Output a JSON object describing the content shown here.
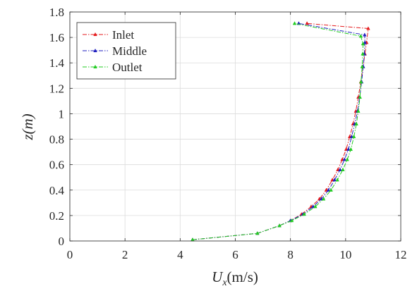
{
  "chart_data": {
    "type": "line",
    "xlabel": "U_x(m/s)",
    "xlabel_var": "U",
    "xlabel_sub": "x",
    "xlabel_unit": "(m/s)",
    "ylabel": "z(m)",
    "ylabel_var": "z",
    "ylabel_unit": "(m)",
    "xlim": [
      0,
      12
    ],
    "ylim": [
      0,
      1.8
    ],
    "xticks": [
      "0",
      "2",
      "4",
      "6",
      "8",
      "10",
      "12"
    ],
    "yticks": [
      "0",
      "0.2",
      "0.4",
      "0.6",
      "0.8",
      "1",
      "1.2",
      "1.4",
      "1.6",
      "1.8"
    ],
    "xtick_values": [
      0,
      2,
      4,
      6,
      8,
      10,
      12
    ],
    "ytick_values": [
      0,
      0.2,
      0.4,
      0.6,
      0.8,
      1.0,
      1.2,
      1.4,
      1.6,
      1.8
    ],
    "grid": true,
    "legend": "top-left",
    "series": [
      {
        "name": "Inlet",
        "color": "#e41a1c",
        "line_style": "dash-dot",
        "marker": "triangle",
        "points": [
          [
            4.45,
            0.01
          ],
          [
            6.8,
            0.06
          ],
          [
            7.6,
            0.12
          ],
          [
            8.0,
            0.16
          ],
          [
            8.4,
            0.21
          ],
          [
            8.75,
            0.27
          ],
          [
            9.05,
            0.33
          ],
          [
            9.3,
            0.4
          ],
          [
            9.52,
            0.48
          ],
          [
            9.72,
            0.56
          ],
          [
            9.88,
            0.64
          ],
          [
            10.02,
            0.72
          ],
          [
            10.15,
            0.82
          ],
          [
            10.27,
            0.92
          ],
          [
            10.37,
            1.02
          ],
          [
            10.46,
            1.13
          ],
          [
            10.55,
            1.25
          ],
          [
            10.63,
            1.37
          ],
          [
            10.7,
            1.47
          ],
          [
            10.76,
            1.56
          ],
          [
            10.82,
            1.67
          ],
          [
            8.6,
            1.71
          ]
        ]
      },
      {
        "name": "Middle",
        "color": "#1f1fbf",
        "line_style": "dash-dot",
        "marker": "triangle",
        "points": [
          [
            4.45,
            0.01
          ],
          [
            6.8,
            0.06
          ],
          [
            7.6,
            0.12
          ],
          [
            8.0,
            0.16
          ],
          [
            8.45,
            0.21
          ],
          [
            8.82,
            0.27
          ],
          [
            9.12,
            0.33
          ],
          [
            9.38,
            0.4
          ],
          [
            9.6,
            0.48
          ],
          [
            9.8,
            0.56
          ],
          [
            9.96,
            0.64
          ],
          [
            10.1,
            0.72
          ],
          [
            10.22,
            0.82
          ],
          [
            10.33,
            0.92
          ],
          [
            10.43,
            1.02
          ],
          [
            10.51,
            1.13
          ],
          [
            10.58,
            1.25
          ],
          [
            10.64,
            1.37
          ],
          [
            10.68,
            1.47
          ],
          [
            10.7,
            1.56
          ],
          [
            10.69,
            1.62
          ],
          [
            8.3,
            1.71
          ]
        ]
      },
      {
        "name": "Outlet",
        "color": "#22cc22",
        "line_style": "dash-dot",
        "marker": "triangle",
        "points": [
          [
            4.45,
            0.01
          ],
          [
            6.8,
            0.06
          ],
          [
            7.6,
            0.12
          ],
          [
            8.05,
            0.16
          ],
          [
            8.5,
            0.21
          ],
          [
            8.9,
            0.27
          ],
          [
            9.2,
            0.33
          ],
          [
            9.47,
            0.4
          ],
          [
            9.7,
            0.48
          ],
          [
            9.9,
            0.56
          ],
          [
            10.06,
            0.64
          ],
          [
            10.19,
            0.72
          ],
          [
            10.3,
            0.82
          ],
          [
            10.39,
            0.92
          ],
          [
            10.46,
            1.02
          ],
          [
            10.52,
            1.13
          ],
          [
            10.56,
            1.25
          ],
          [
            10.6,
            1.37
          ],
          [
            10.62,
            1.47
          ],
          [
            10.63,
            1.55
          ],
          [
            10.55,
            1.61
          ],
          [
            8.15,
            1.71
          ]
        ]
      }
    ]
  }
}
